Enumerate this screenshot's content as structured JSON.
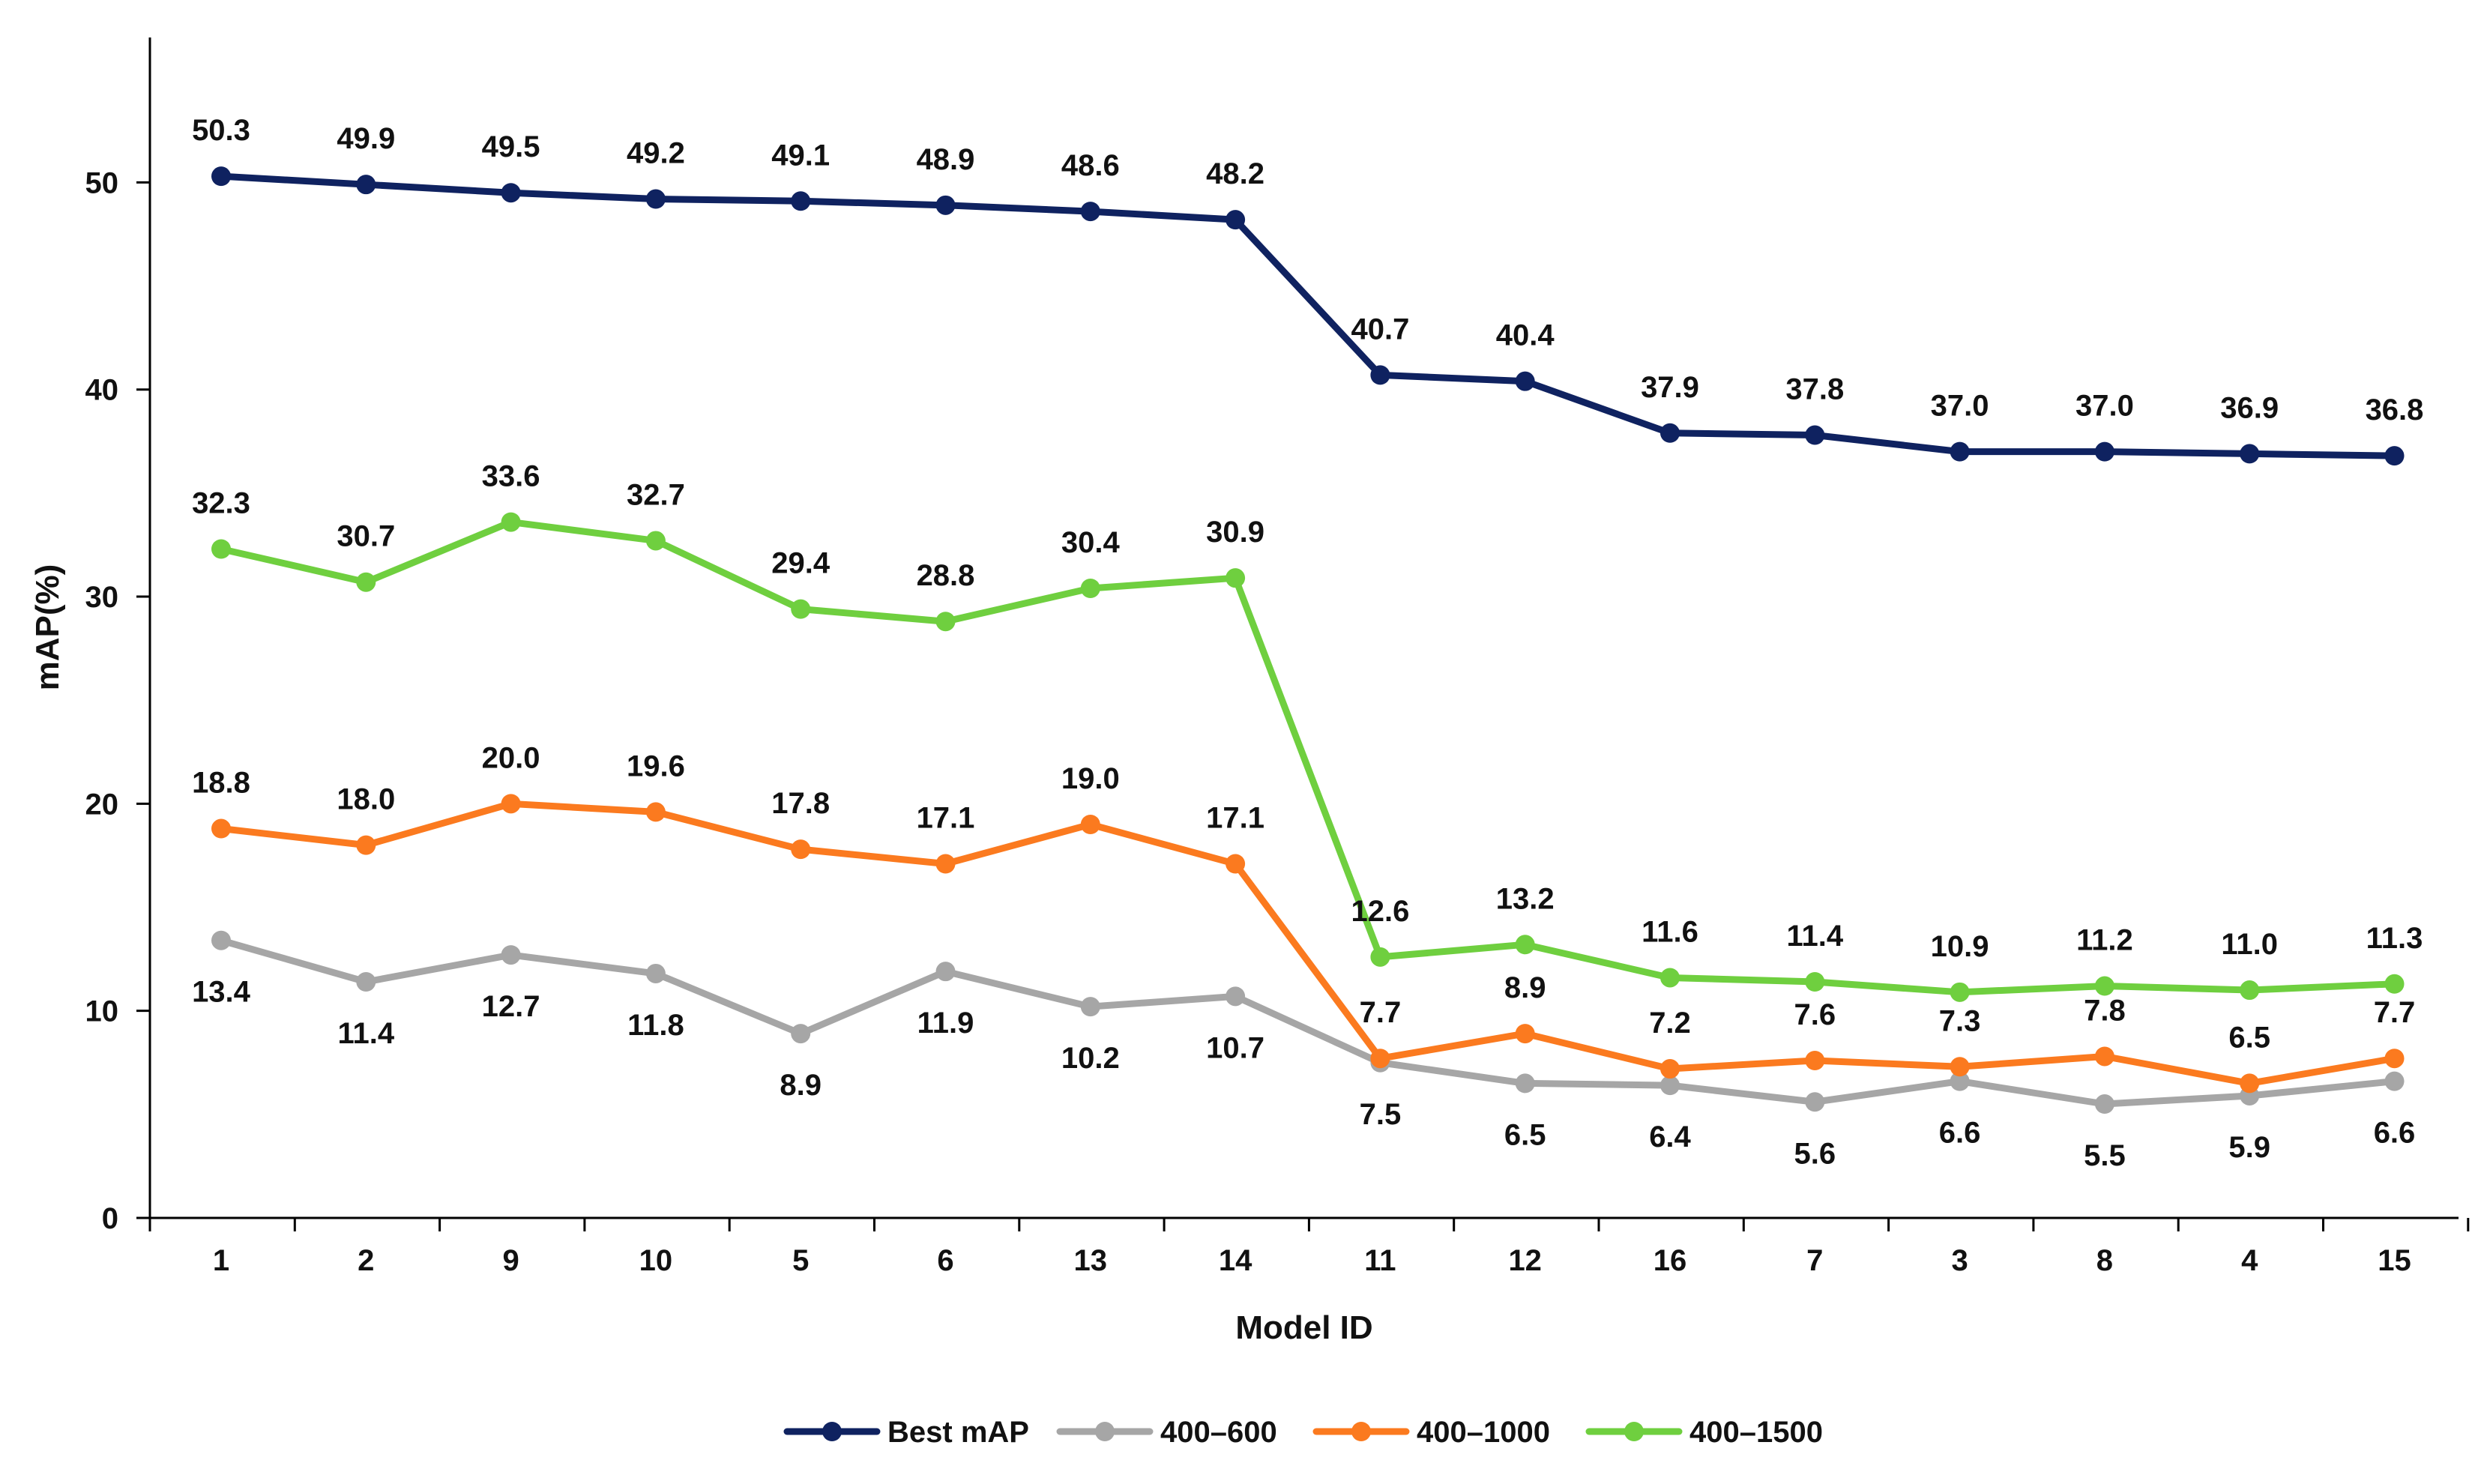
{
  "chart_data": {
    "type": "line",
    "title": "",
    "xlabel": "Model ID",
    "ylabel": "mAP(%)",
    "categories": [
      "1",
      "2",
      "9",
      "10",
      "5",
      "6",
      "13",
      "14",
      "11",
      "12",
      "16",
      "7",
      "3",
      "8",
      "4",
      "15"
    ],
    "ylim": [
      0,
      57
    ],
    "yticks": [
      0,
      10,
      20,
      30,
      40,
      50
    ],
    "grid": false,
    "legend_position": "bottom-center",
    "series": [
      {
        "name": "Best mAP",
        "color": "#0f2260",
        "label_position": "above",
        "values": [
          50.3,
          49.9,
          49.5,
          49.2,
          49.1,
          48.9,
          48.6,
          48.2,
          40.7,
          40.4,
          37.9,
          37.8,
          37.0,
          37.0,
          36.9,
          36.8
        ],
        "labels": [
          "50.3",
          "49.9",
          "49.5",
          "49.2",
          "49.1",
          "48.9",
          "48.6",
          "48.2",
          "40.7",
          "40.4",
          "37.9",
          "37.8",
          "37.0",
          "37.0",
          "36.9",
          "36.8"
        ]
      },
      {
        "name": "400–600",
        "color": "#a6a6a6",
        "label_position": "below",
        "values": [
          13.4,
          11.4,
          12.7,
          11.8,
          8.9,
          11.9,
          10.2,
          10.7,
          7.5,
          6.5,
          6.4,
          5.6,
          6.6,
          5.5,
          5.9,
          6.6
        ],
        "labels": [
          "13.4",
          "11.4",
          "12.7",
          "11.8",
          "8.9",
          "11.9",
          "10.2",
          "10.7",
          "7.5",
          "6.5",
          "6.4",
          "5.6",
          "6.6",
          "5.5",
          "5.9",
          "6.6"
        ]
      },
      {
        "name": "400–1000",
        "color": "#fb7a1f",
        "label_position": "above",
        "values": [
          18.8,
          18.0,
          20.0,
          19.6,
          17.8,
          17.1,
          19.0,
          17.1,
          7.7,
          8.9,
          7.2,
          7.6,
          7.3,
          7.8,
          6.5,
          7.7
        ],
        "labels": [
          "18.8",
          "18.0",
          "20.0",
          "19.6",
          "17.8",
          "17.1",
          "19.0",
          "17.1",
          "7.7",
          "8.9",
          "7.2",
          "7.6",
          "7.3",
          "7.8",
          "6.5",
          "7.7"
        ]
      },
      {
        "name": "400–1500",
        "color": "#6fcf3f",
        "label_position": "above",
        "values": [
          32.3,
          30.7,
          33.6,
          32.7,
          29.4,
          28.8,
          30.4,
          30.9,
          12.6,
          13.2,
          11.6,
          11.4,
          10.9,
          11.2,
          11.0,
          11.3
        ],
        "labels": [
          "32.3",
          "30.7",
          "33.6",
          "32.7",
          "29.4",
          "28.8",
          "30.4",
          "30.9",
          "12.6",
          "13.2",
          "11.6",
          "11.4",
          "10.9",
          "11.2",
          "11.0",
          "11.3"
        ]
      }
    ]
  }
}
